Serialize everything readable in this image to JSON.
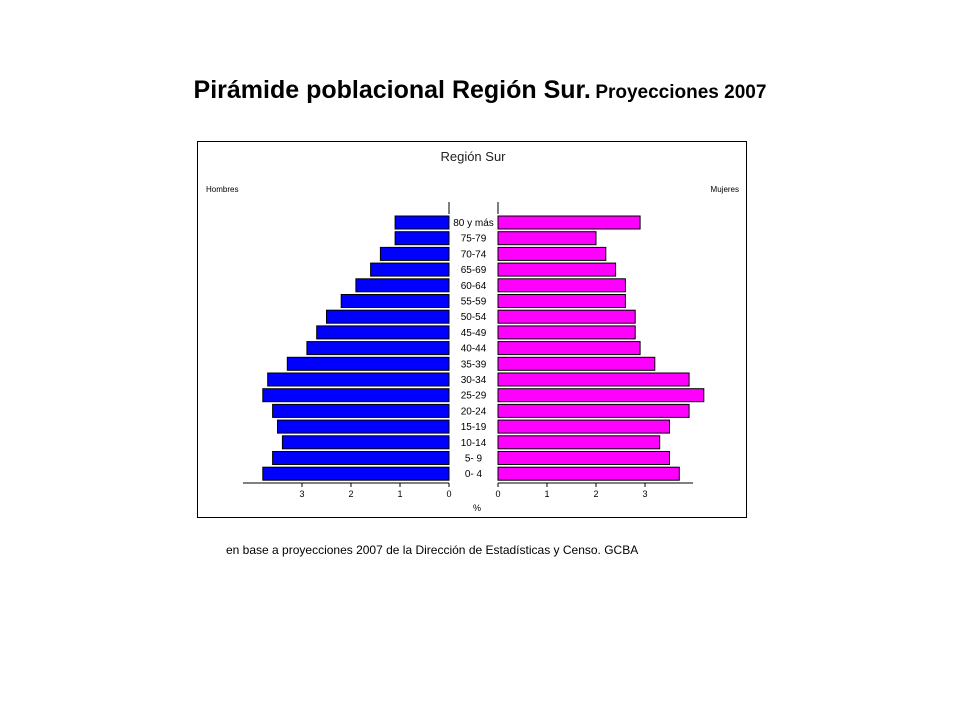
{
  "slide": {
    "title_main": "Pirámide poblacional Región Sur.",
    "title_sub": "Proyecciones 2007",
    "source": "en base a proyecciones 2007 de la Dirección de Estadísticas y Censo. GCBA"
  },
  "chart_data": {
    "type": "bar",
    "orientation": "horizontal-pyramid",
    "title": "Región Sur",
    "left_label": "Hombres",
    "right_label": "Mujeres",
    "xlabel": "%",
    "categories": [
      "80 y más",
      "75-79",
      "70-74",
      "65-69",
      "60-64",
      "55-59",
      "50-54",
      "45-49",
      "40-44",
      "35-39",
      "30-34",
      "25-29",
      "20-24",
      "15-19",
      "10-14",
      "5- 9",
      "0- 4"
    ],
    "series": [
      {
        "name": "Hombres",
        "color": "#0000ff",
        "values": [
          1.1,
          1.1,
          1.4,
          1.6,
          1.9,
          2.2,
          2.5,
          2.7,
          2.9,
          3.3,
          3.7,
          3.8,
          3.6,
          3.5,
          3.4,
          3.6,
          3.8
        ]
      },
      {
        "name": "Mujeres",
        "color": "#ff00ff",
        "values": [
          2.9,
          2.0,
          2.2,
          2.4,
          2.6,
          2.6,
          2.8,
          2.8,
          2.9,
          3.2,
          3.9,
          4.2,
          3.9,
          3.5,
          3.3,
          3.5,
          3.7
        ]
      }
    ],
    "xlim": [
      0,
      4
    ],
    "xticks_left": [
      "3",
      "2",
      "1",
      "0"
    ],
    "xticks_right": [
      "0",
      "1",
      "2",
      "3"
    ],
    "grid": false
  }
}
